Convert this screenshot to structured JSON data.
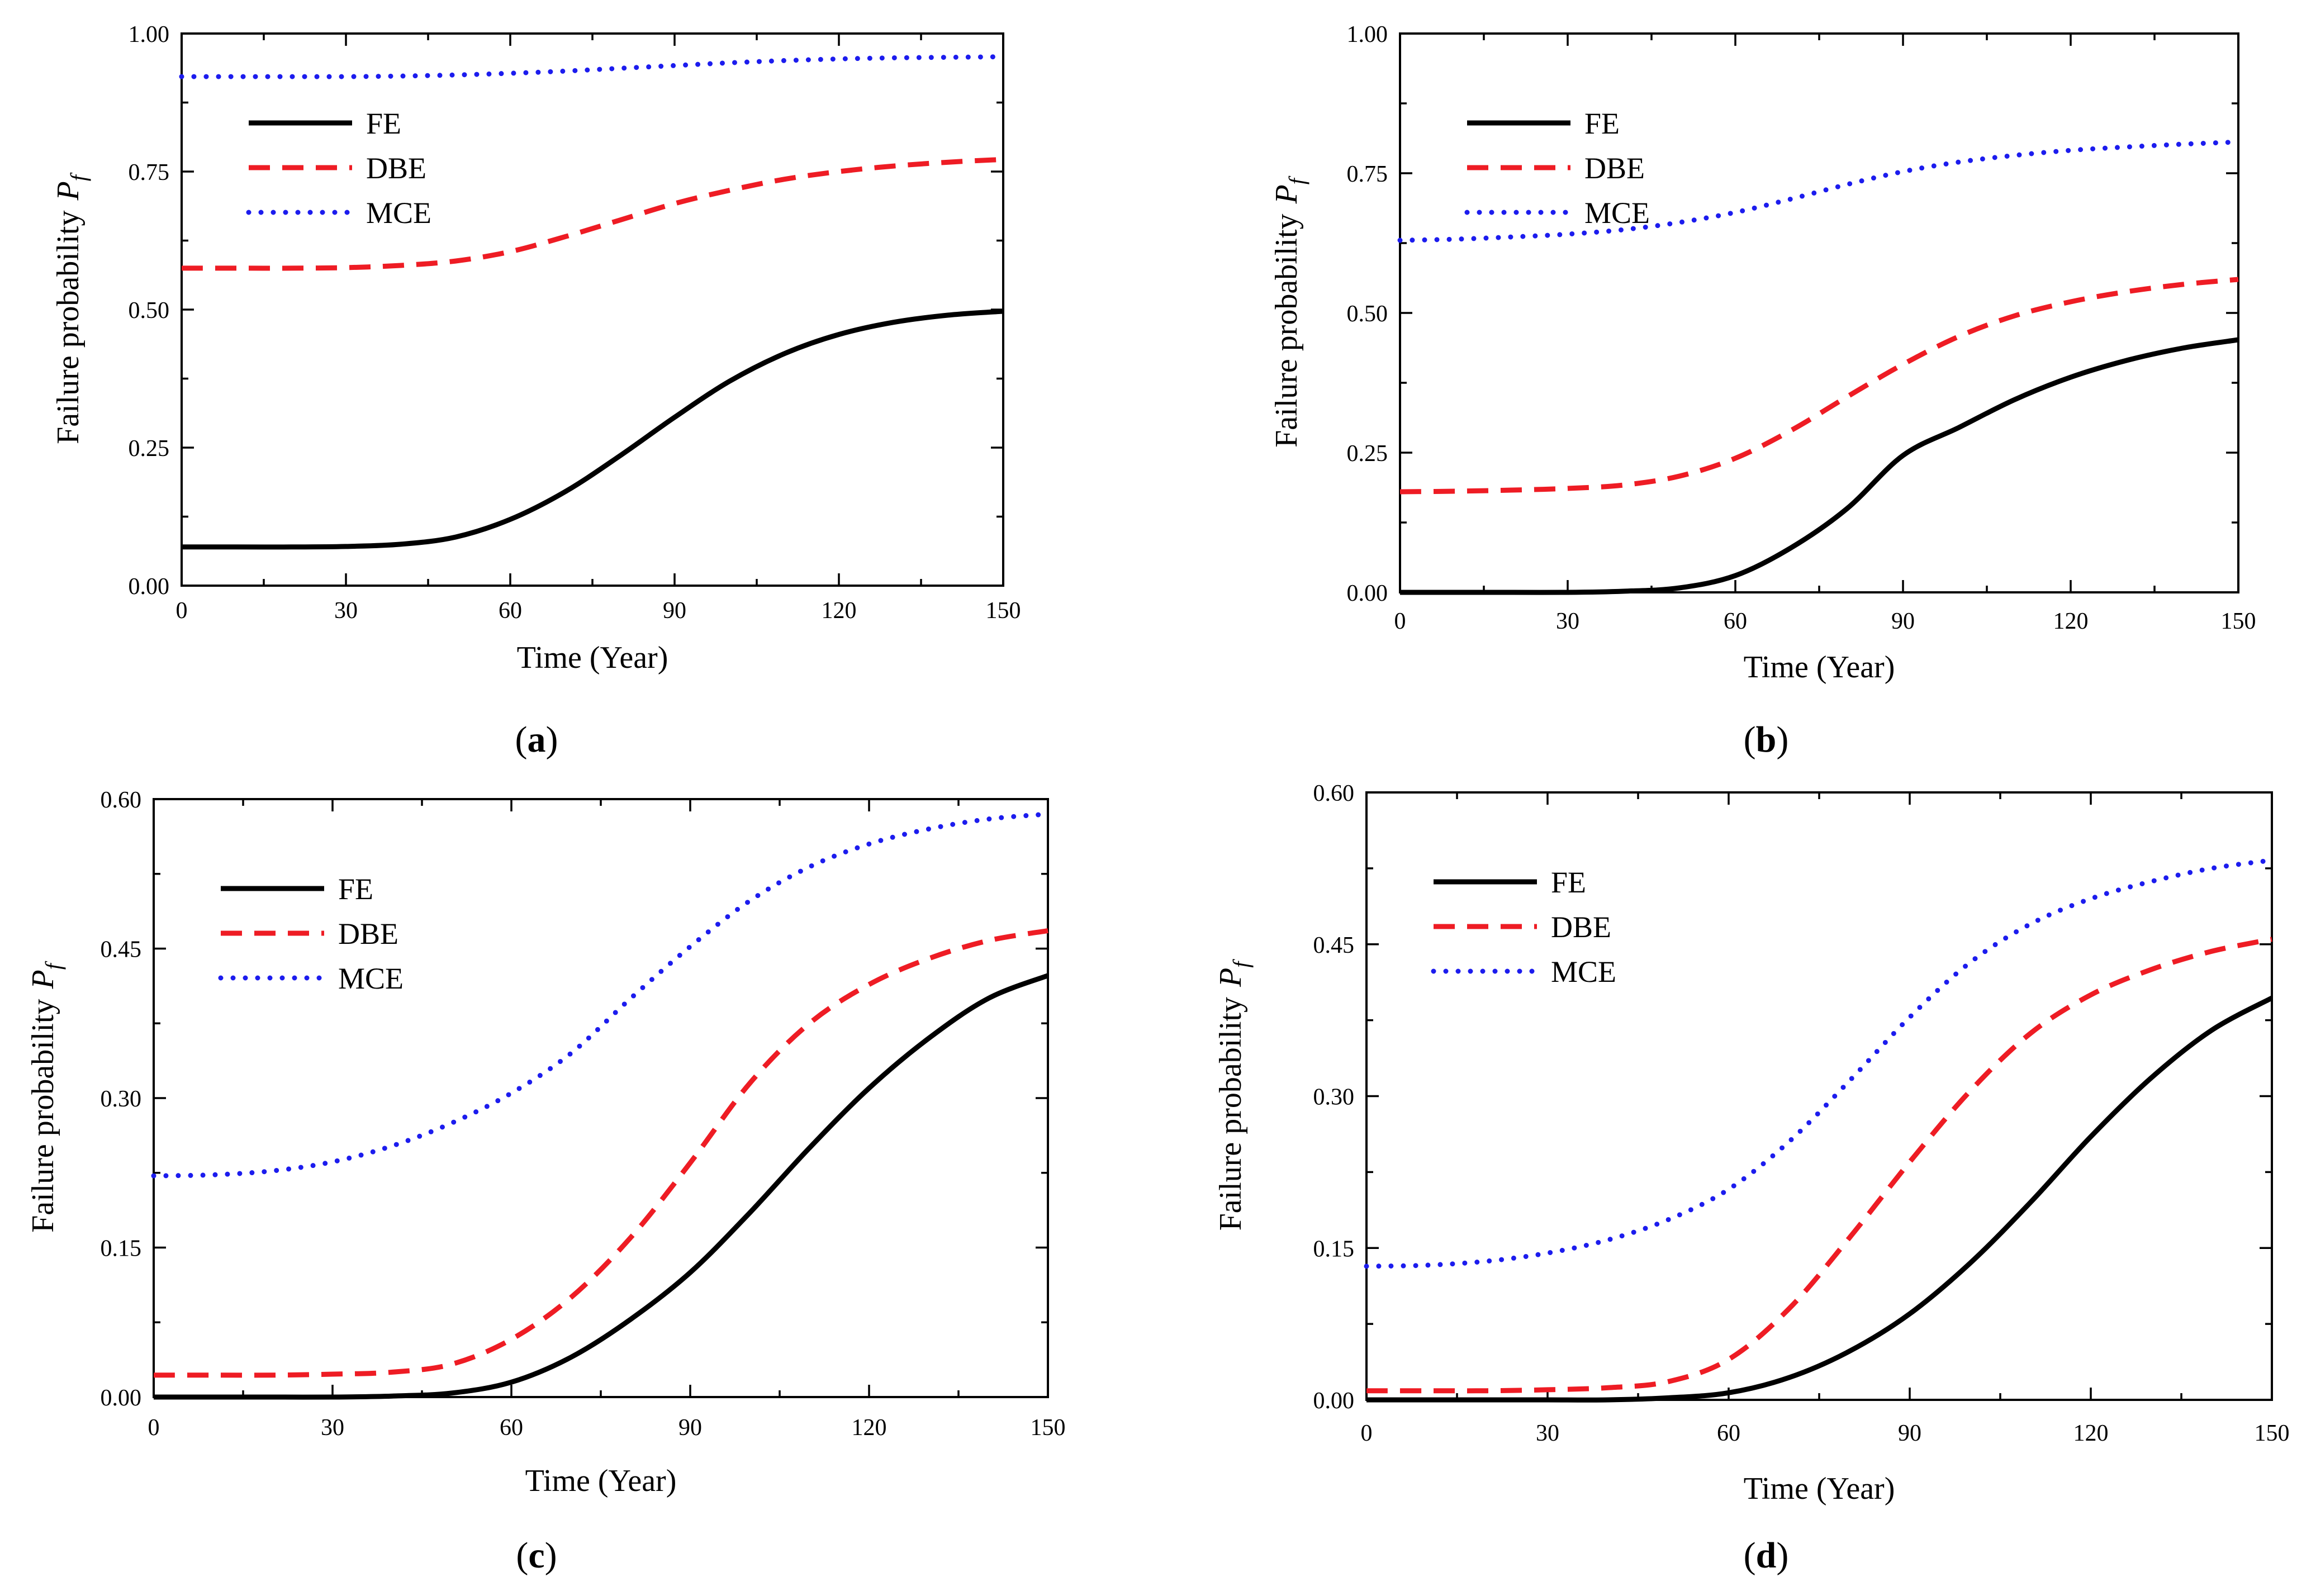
{
  "figure": {
    "colors": {
      "FE": "#000000",
      "DBE": "#ee1c24",
      "MCE": "#1c1cee"
    }
  },
  "chart_data": [
    {
      "type": "line",
      "panel_label": "a",
      "caption_open": "(",
      "caption_close": ")",
      "xlabel": "Time (Year)",
      "ylabel_text": "Failure probability",
      "ylabel_symbol": "P",
      "ylabel_sub": "f",
      "xlim": [
        0,
        150
      ],
      "ylim": [
        0,
        1.0
      ],
      "xticks": [
        0,
        30,
        60,
        90,
        120,
        150
      ],
      "xtick_labels": [
        "0",
        "30",
        "60",
        "90",
        "120",
        "150"
      ],
      "yticks": [
        0,
        0.25,
        0.5,
        0.75,
        1.0
      ],
      "ytick_labels": [
        "0.00",
        "0.25",
        "0.50",
        "0.75",
        "1.00"
      ],
      "legend_position": "upper-left",
      "x": [
        0,
        10,
        20,
        30,
        40,
        50,
        60,
        70,
        80,
        90,
        100,
        110,
        120,
        130,
        140,
        150
      ],
      "series": [
        {
          "name": "FE",
          "style": "solid",
          "values": [
            0.07,
            0.07,
            0.07,
            0.071,
            0.075,
            0.088,
            0.12,
            0.17,
            0.235,
            0.305,
            0.37,
            0.42,
            0.455,
            0.477,
            0.49,
            0.497
          ]
        },
        {
          "name": "DBE",
          "style": "dashed",
          "values": [
            0.575,
            0.575,
            0.575,
            0.576,
            0.58,
            0.588,
            0.605,
            0.632,
            0.662,
            0.692,
            0.716,
            0.736,
            0.75,
            0.76,
            0.767,
            0.772
          ]
        },
        {
          "name": "MCE",
          "style": "dotted",
          "values": [
            0.922,
            0.922,
            0.922,
            0.922,
            0.923,
            0.925,
            0.928,
            0.932,
            0.937,
            0.942,
            0.947,
            0.951,
            0.954,
            0.956,
            0.957,
            0.958
          ]
        }
      ]
    },
    {
      "type": "line",
      "panel_label": "b",
      "caption_open": "(",
      "caption_close": ")",
      "xlabel": "Time (Year)",
      "ylabel_text": "Failure probability",
      "ylabel_symbol": "P",
      "ylabel_sub": "f",
      "xlim": [
        0,
        150
      ],
      "ylim": [
        0,
        1.0
      ],
      "xticks": [
        0,
        30,
        60,
        90,
        120,
        150
      ],
      "xtick_labels": [
        "0",
        "30",
        "60",
        "90",
        "120",
        "150"
      ],
      "yticks": [
        0,
        0.25,
        0.5,
        0.75,
        1.0
      ],
      "ytick_labels": [
        "0.00",
        "0.25",
        "0.50",
        "0.75",
        "1.00"
      ],
      "legend_position": "upper-left",
      "x": [
        0,
        10,
        20,
        30,
        40,
        50,
        60,
        70,
        80,
        90,
        100,
        110,
        120,
        130,
        140,
        150
      ],
      "series": [
        {
          "name": "FE",
          "style": "solid",
          "values": [
            0.0,
            0.0,
            0.0,
            0.0,
            0.002,
            0.008,
            0.03,
            0.08,
            0.15,
            0.245,
            0.295,
            0.345,
            0.385,
            0.415,
            0.437,
            0.452
          ]
        },
        {
          "name": "DBE",
          "style": "dashed",
          "values": [
            0.18,
            0.181,
            0.183,
            0.186,
            0.192,
            0.208,
            0.24,
            0.29,
            0.35,
            0.408,
            0.458,
            0.495,
            0.52,
            0.538,
            0.551,
            0.56
          ]
        },
        {
          "name": "MCE",
          "style": "dotted",
          "values": [
            0.63,
            0.632,
            0.636,
            0.641,
            0.649,
            0.662,
            0.68,
            0.704,
            0.73,
            0.753,
            0.77,
            0.782,
            0.791,
            0.797,
            0.802,
            0.806
          ]
        }
      ]
    },
    {
      "type": "line",
      "panel_label": "c",
      "caption_open": "(",
      "caption_close": ")",
      "xlabel": "Time (Year)",
      "ylabel_text": "Failure probability",
      "ylabel_symbol": "P",
      "ylabel_sub": "f",
      "xlim": [
        0,
        150
      ],
      "ylim": [
        0,
        0.6
      ],
      "xticks": [
        0,
        30,
        60,
        90,
        120,
        150
      ],
      "xtick_labels": [
        "0",
        "30",
        "60",
        "90",
        "120",
        "150"
      ],
      "yticks": [
        0,
        0.15,
        0.3,
        0.45,
        0.6
      ],
      "ytick_labels": [
        "0.00",
        "0.15",
        "0.30",
        "0.45",
        "0.60"
      ],
      "legend_position": "upper-left",
      "x": [
        0,
        10,
        20,
        30,
        40,
        50,
        60,
        70,
        80,
        90,
        100,
        110,
        120,
        130,
        140,
        150
      ],
      "series": [
        {
          "name": "FE",
          "style": "solid",
          "values": [
            0.0,
            0.0,
            0.0,
            0.0,
            0.001,
            0.004,
            0.015,
            0.04,
            0.078,
            0.125,
            0.185,
            0.25,
            0.31,
            0.36,
            0.4,
            0.423
          ]
        },
        {
          "name": "DBE",
          "style": "dashed",
          "values": [
            0.022,
            0.022,
            0.022,
            0.023,
            0.025,
            0.033,
            0.058,
            0.1,
            0.16,
            0.235,
            0.315,
            0.375,
            0.414,
            0.44,
            0.458,
            0.468
          ]
        },
        {
          "name": "MCE",
          "style": "dotted",
          "values": [
            0.222,
            0.223,
            0.227,
            0.236,
            0.252,
            0.275,
            0.305,
            0.345,
            0.4,
            0.452,
            0.498,
            0.532,
            0.555,
            0.57,
            0.58,
            0.585
          ]
        }
      ]
    },
    {
      "type": "line",
      "panel_label": "d",
      "caption_open": "(",
      "caption_close": ")",
      "xlabel": "Time (Year)",
      "ylabel_text": "Failure probability",
      "ylabel_symbol": "P",
      "ylabel_sub": "f",
      "xlim": [
        0,
        150
      ],
      "ylim": [
        0,
        0.6
      ],
      "xticks": [
        0,
        30,
        60,
        90,
        120,
        150
      ],
      "xtick_labels": [
        "0",
        "30",
        "60",
        "90",
        "120",
        "150"
      ],
      "yticks": [
        0,
        0.15,
        0.3,
        0.45,
        0.6
      ],
      "ytick_labels": [
        "0.00",
        "0.15",
        "0.30",
        "0.45",
        "0.60"
      ],
      "legend_position": "upper-left",
      "x": [
        0,
        10,
        20,
        30,
        40,
        50,
        60,
        70,
        80,
        90,
        100,
        110,
        120,
        130,
        140,
        150
      ],
      "series": [
        {
          "name": "FE",
          "style": "solid",
          "values": [
            0.0,
            0.0,
            0.0,
            0.0,
            0.0,
            0.002,
            0.007,
            0.022,
            0.048,
            0.085,
            0.135,
            0.195,
            0.26,
            0.318,
            0.365,
            0.397
          ]
        },
        {
          "name": "DBE",
          "style": "dashed",
          "values": [
            0.009,
            0.009,
            0.009,
            0.01,
            0.012,
            0.018,
            0.04,
            0.09,
            0.16,
            0.235,
            0.305,
            0.362,
            0.4,
            0.425,
            0.443,
            0.455
          ]
        },
        {
          "name": "MCE",
          "style": "dotted",
          "values": [
            0.132,
            0.133,
            0.137,
            0.145,
            0.158,
            0.178,
            0.208,
            0.255,
            0.315,
            0.378,
            0.432,
            0.47,
            0.495,
            0.512,
            0.525,
            0.533
          ]
        }
      ]
    }
  ]
}
